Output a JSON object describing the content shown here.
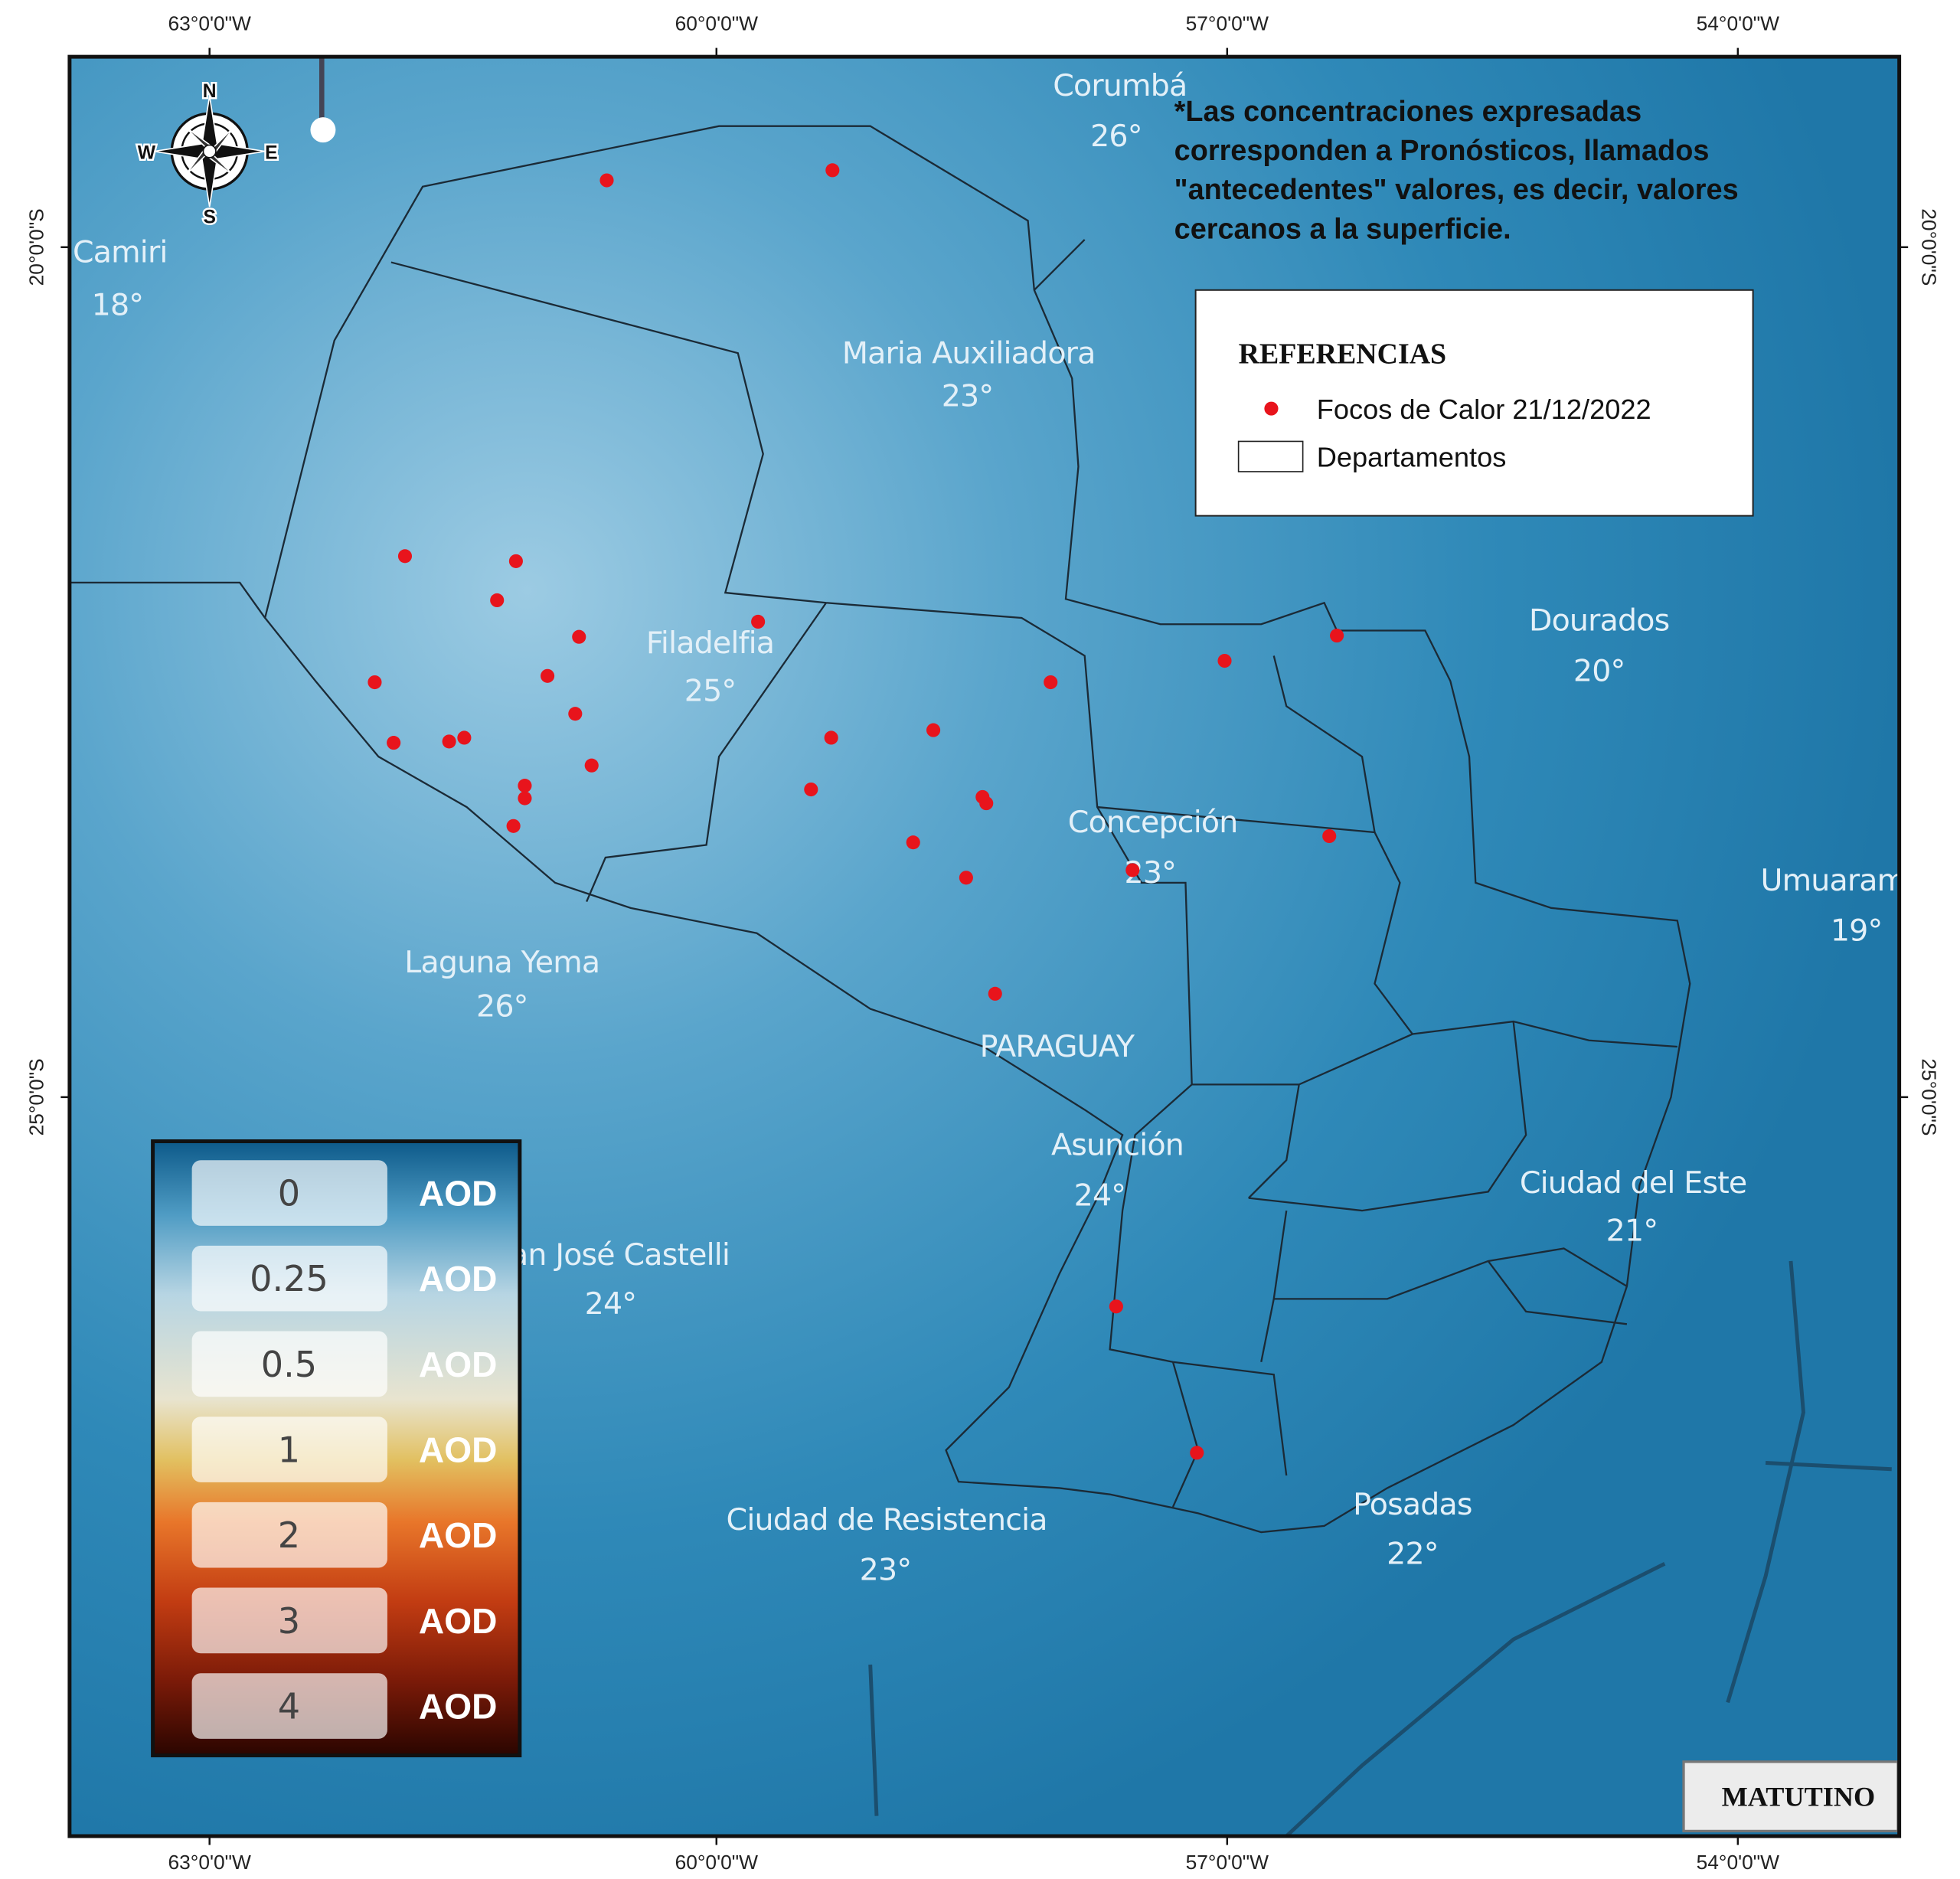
{
  "graticule": {
    "lon_labels": [
      "63°0'0\"W",
      "60°0'0\"W",
      "57°0'0\"W",
      "54°0'0\"W"
    ],
    "lat_labels": [
      "20°0'0\"S",
      "25°0'0\"S"
    ]
  },
  "compass": {
    "north": "N",
    "south": "S",
    "east": "E",
    "west": "W"
  },
  "note": {
    "lines": [
      "*Las concentraciones expresadas",
      "corresponden a Pronósticos, llamados",
      "\"antecedentes\" valores, es decir, valores",
      "cercanos a la superficie."
    ]
  },
  "country_label": "PARAGUAY",
  "cities": [
    {
      "name": "Corumbá",
      "temp": "26°"
    },
    {
      "name": "Camiri",
      "temp": "18°"
    },
    {
      "name": "Maria Auxiliadora",
      "temp": "23°"
    },
    {
      "name": "Filadelfia",
      "temp": "25°"
    },
    {
      "name": "Dourados",
      "temp": "20°"
    },
    {
      "name": "Concepción",
      "temp": "23°"
    },
    {
      "name": "Umuarama",
      "temp": "19°"
    },
    {
      "name": "Laguna Yema",
      "temp": "26°"
    },
    {
      "name": "San José Castelli",
      "temp": "24°"
    },
    {
      "name": "Asunción",
      "temp": "24°"
    },
    {
      "name": "Ciudad del Este",
      "temp": "21°"
    },
    {
      "name": "Ciudad de Resistencia",
      "temp": "23°"
    },
    {
      "name": "Posadas",
      "temp": "22°"
    }
  ],
  "legend": {
    "title": "REFERENCIAS",
    "items": [
      "Focos de Calor 21/12/2022",
      "Departamentos"
    ]
  },
  "aod_scale": {
    "values": [
      "0",
      "0.25",
      "0.5",
      "1",
      "2",
      "3",
      "4"
    ],
    "unit": "AOD"
  },
  "badge": "MATUTINO"
}
